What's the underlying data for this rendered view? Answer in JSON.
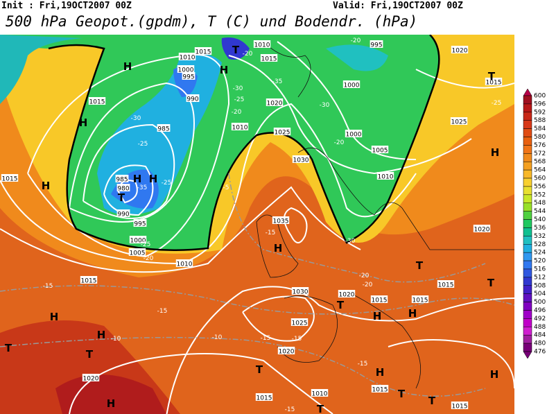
{
  "header": {
    "init": "Init : Fri,19OCT2007 00Z",
    "valid": "Valid: Fri,19OCT2007 00Z",
    "title": "500 hPa Geopot.(gpdm), T (C) und Bodendr. (hPa)"
  },
  "colorbar": {
    "labels": [
      "600",
      "596",
      "592",
      "588",
      "584",
      "580",
      "576",
      "572",
      "568",
      "564",
      "560",
      "556",
      "552",
      "548",
      "544",
      "540",
      "536",
      "532",
      "528",
      "524",
      "520",
      "516",
      "512",
      "508",
      "504",
      "500",
      "496",
      "492",
      "488",
      "484",
      "480",
      "476"
    ],
    "colors": [
      "#b80048",
      "#a01020",
      "#b81818",
      "#c82818",
      "#d83818",
      "#e04c14",
      "#e86010",
      "#f07418",
      "#f08a1c",
      "#f4a020",
      "#f8b828",
      "#f8d030",
      "#e8e030",
      "#c8e828",
      "#98e028",
      "#50d040",
      "#20c860",
      "#10c090",
      "#20c0c0",
      "#20b0e0",
      "#3098f0",
      "#3078f0",
      "#3058e0",
      "#3038d0",
      "#4020c8",
      "#6010c0",
      "#8000c0",
      "#a000c8",
      "#c000c8",
      "#d020d0",
      "#a020a0",
      "#780078"
    ]
  },
  "map": {
    "pressure_labels": [
      "1010",
      "1015",
      "1010",
      "1000",
      "995",
      "1015",
      "995",
      "1020",
      "1015",
      "990",
      "1020",
      "985",
      "1010",
      "1025",
      "1000",
      "1005",
      "1030",
      "1015",
      "985",
      "980",
      "990",
      "995",
      "1010",
      "1035",
      "1000",
      "1005",
      "1010",
      "1015",
      "1030",
      "1020",
      "1015",
      "1015",
      "1015",
      "1025",
      "1020",
      "1020",
      "1015",
      "1010",
      "1015",
      "1015",
      "1000",
      "1020",
      "1025",
      "1015"
    ],
    "temperature_labels": [
      "-30",
      "-25",
      "-35",
      "-25",
      "-5",
      "-30",
      "-25",
      "-20",
      "-35",
      "-30",
      "-20",
      "-25",
      "-15",
      "-15",
      "-10",
      "-10",
      "-15",
      "-15",
      "-15",
      "-15",
      "-20",
      "-25",
      "-15",
      "-20",
      "-20",
      "-30",
      "-20",
      "-20"
    ],
    "centers": [
      "H",
      "H",
      "T",
      "H",
      "T",
      "H",
      "H",
      "H",
      "H",
      "T",
      "H",
      "T",
      "T",
      "H",
      "H",
      "T",
      "T",
      "T",
      "H",
      "H",
      "T",
      "H",
      "T",
      "T",
      "H",
      "T",
      "H"
    ]
  }
}
